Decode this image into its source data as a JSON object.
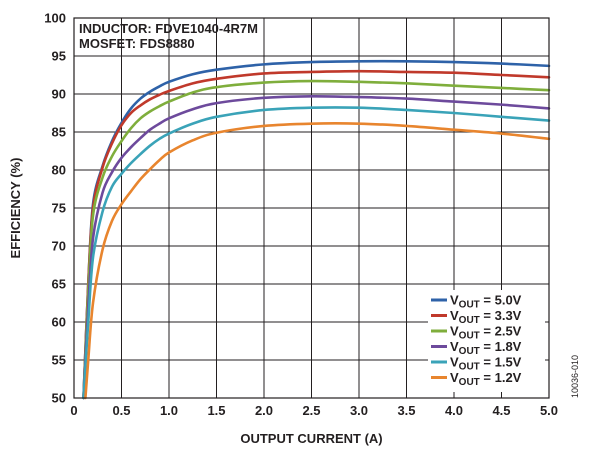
{
  "chart_data": {
    "type": "line",
    "xlabel": "OUTPUT CURRENT (A)",
    "ylabel": "EFFICIENCY (%)",
    "xlim": [
      0,
      5.0
    ],
    "ylim": [
      50,
      100
    ],
    "x_ticks": [
      "0",
      "0.5",
      "1.0",
      "1.5",
      "2.0",
      "2.5",
      "3.0",
      "3.5",
      "4.0",
      "4.5",
      "5.0"
    ],
    "y_ticks": [
      "50",
      "55",
      "60",
      "65",
      "70",
      "75",
      "80",
      "85",
      "90",
      "95",
      "100"
    ],
    "grid": true,
    "legend_position": "bottom-right",
    "annotations": [
      "INDUCTOR: FDVE1040-4R7M",
      "MOSFET: FDS8880"
    ],
    "figure_id": "10036-010",
    "series": [
      {
        "name": "V_OUT = 5.0V",
        "legend_prefix": "V",
        "legend_sub": "OUT",
        "legend_suffix": " = 5.0V",
        "color": "#2e62a8",
        "x": [
          0.1,
          0.15,
          0.2,
          0.3,
          0.4,
          0.5,
          0.6,
          0.7,
          0.8,
          0.9,
          1.0,
          1.25,
          1.5,
          2.0,
          2.5,
          3.0,
          3.5,
          4.0,
          4.5,
          5.0
        ],
        "y": [
          50,
          65,
          75.5,
          80.5,
          83.8,
          86.2,
          88.1,
          89.4,
          90.3,
          91.0,
          91.6,
          92.6,
          93.2,
          93.9,
          94.2,
          94.3,
          94.3,
          94.2,
          94.0,
          93.7
        ]
      },
      {
        "name": "V_OUT = 3.3V",
        "legend_prefix": "V",
        "legend_sub": "OUT",
        "legend_suffix": " = 3.3V",
        "color": "#c0392b",
        "x": [
          0.1,
          0.15,
          0.2,
          0.3,
          0.4,
          0.5,
          0.6,
          0.7,
          0.8,
          0.9,
          1.0,
          1.25,
          1.5,
          2.0,
          2.5,
          3.0,
          3.5,
          4.0,
          4.5,
          5.0
        ],
        "y": [
          50,
          65,
          75,
          80.3,
          83.5,
          85.9,
          87.5,
          88.5,
          89.3,
          89.9,
          90.4,
          91.4,
          92.0,
          92.7,
          92.9,
          93.0,
          92.9,
          92.8,
          92.5,
          92.2
        ]
      },
      {
        "name": "V_OUT = 2.5V",
        "legend_prefix": "V",
        "legend_sub": "OUT",
        "legend_suffix": " = 2.5V",
        "color": "#7fae3c",
        "x": [
          0.1,
          0.15,
          0.2,
          0.3,
          0.4,
          0.5,
          0.6,
          0.7,
          0.8,
          0.9,
          1.0,
          1.25,
          1.5,
          2.0,
          2.5,
          3.0,
          3.5,
          4.0,
          4.5,
          5.0
        ],
        "y": [
          50,
          64,
          74,
          79,
          81.8,
          83.8,
          85.5,
          86.8,
          87.7,
          88.4,
          89.0,
          90.2,
          90.9,
          91.5,
          91.7,
          91.6,
          91.4,
          91.1,
          90.8,
          90.5
        ]
      },
      {
        "name": "V_OUT = 1.8V",
        "legend_prefix": "V",
        "legend_sub": "OUT",
        "legend_suffix": " = 1.8V",
        "color": "#6d4a9c",
        "x": [
          0.1,
          0.15,
          0.2,
          0.3,
          0.4,
          0.5,
          0.6,
          0.7,
          0.8,
          0.9,
          1.0,
          1.25,
          1.5,
          2.0,
          2.5,
          3.0,
          3.5,
          4.0,
          4.5,
          5.0
        ],
        "y": [
          50,
          62,
          71,
          77,
          79.7,
          81.6,
          83.0,
          84.2,
          85.3,
          86.1,
          86.8,
          88.0,
          88.8,
          89.5,
          89.7,
          89.6,
          89.4,
          89.0,
          88.6,
          88.1
        ]
      },
      {
        "name": "V_OUT = 1.5V",
        "legend_prefix": "V",
        "legend_sub": "OUT",
        "legend_suffix": " = 1.5V",
        "color": "#3aa3b8",
        "x": [
          0.1,
          0.15,
          0.2,
          0.3,
          0.4,
          0.5,
          0.6,
          0.7,
          0.8,
          0.9,
          1.0,
          1.25,
          1.5,
          2.0,
          2.5,
          3.0,
          3.5,
          4.0,
          4.5,
          5.0
        ],
        "y": [
          50,
          60,
          68.5,
          74.5,
          77.8,
          79.5,
          80.9,
          82.1,
          83.2,
          84.1,
          84.8,
          86.1,
          87.0,
          87.9,
          88.2,
          88.2,
          87.9,
          87.5,
          87.0,
          86.5
        ]
      },
      {
        "name": "V_OUT = 1.2V",
        "legend_prefix": "V",
        "legend_sub": "OUT",
        "legend_suffix": " = 1.2V",
        "color": "#e8852e",
        "x": [
          0.12,
          0.15,
          0.2,
          0.3,
          0.4,
          0.5,
          0.6,
          0.7,
          0.8,
          0.9,
          1.0,
          1.25,
          1.5,
          2.0,
          2.5,
          3.0,
          3.5,
          4.0,
          4.5,
          5.0
        ],
        "y": [
          50,
          55,
          62.5,
          69.5,
          73.3,
          75.5,
          77.2,
          78.8,
          80.1,
          81.3,
          82.3,
          83.9,
          84.9,
          85.8,
          86.1,
          86.1,
          85.8,
          85.3,
          84.8,
          84.1
        ]
      }
    ]
  }
}
